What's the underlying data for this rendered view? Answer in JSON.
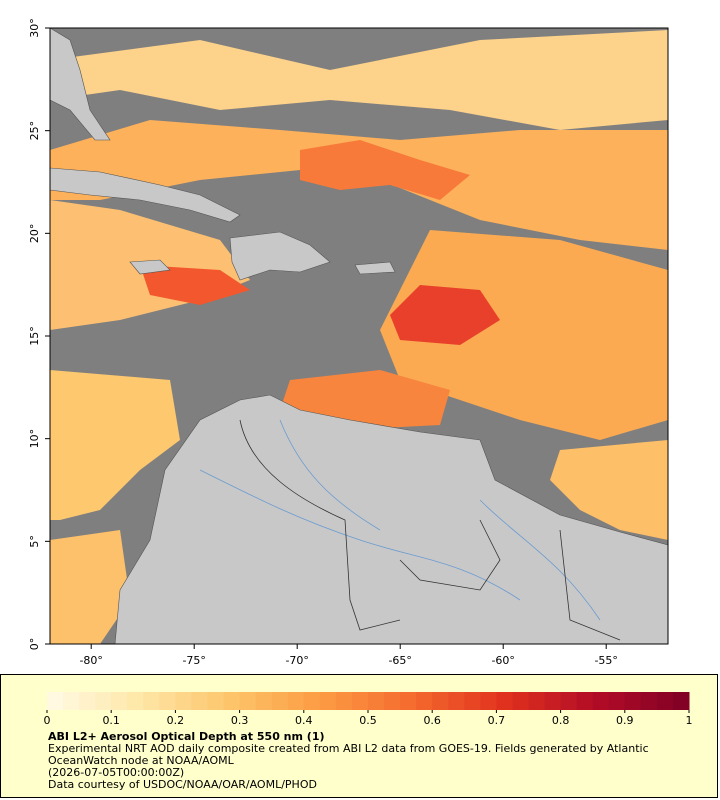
{
  "map": {
    "type": "map",
    "xlim": [
      -82,
      -52
    ],
    "ylim": [
      0,
      30
    ],
    "xticks": [
      {
        "value": -80,
        "label": "-80°"
      },
      {
        "value": -75,
        "label": "-75°"
      },
      {
        "value": -70,
        "label": "-70°"
      },
      {
        "value": -65,
        "label": "-65°"
      },
      {
        "value": -60,
        "label": "-60°"
      },
      {
        "value": -55,
        "label": "-55°"
      }
    ],
    "yticks": [
      {
        "value": 0,
        "label": "0°"
      },
      {
        "value": 5,
        "label": "5°"
      },
      {
        "value": 10,
        "label": "10°"
      },
      {
        "value": 15,
        "label": "15°"
      },
      {
        "value": 20,
        "label": "20°"
      },
      {
        "value": 25,
        "label": "25°"
      },
      {
        "value": 30,
        "label": "30°"
      }
    ]
  },
  "colorbar": {
    "lim": [
      0,
      1
    ],
    "ticks": [
      0,
      0.1,
      0.2,
      0.3,
      0.4,
      0.5,
      0.6,
      0.7,
      0.8,
      0.9,
      1
    ],
    "colors": [
      "#fffbe6",
      "#fee7a8",
      "#fdc56a",
      "#fc9a43",
      "#f46a2e",
      "#e0301e",
      "#b10b26",
      "#800026"
    ]
  },
  "caption": {
    "title": "ABI L2+ Aerosol Optical Depth at 550 nm (1)",
    "description": "Experimental NRT AOD daily composite created from ABI L2 data from GOES-19. Fields generated by Atlantic OceanWatch node at NOAA/AOML",
    "date": "(2026-07-05T00:00:00Z)",
    "credit": "Data courtesy of USDOC/NOAA/OAR/AOML/PHOD"
  }
}
